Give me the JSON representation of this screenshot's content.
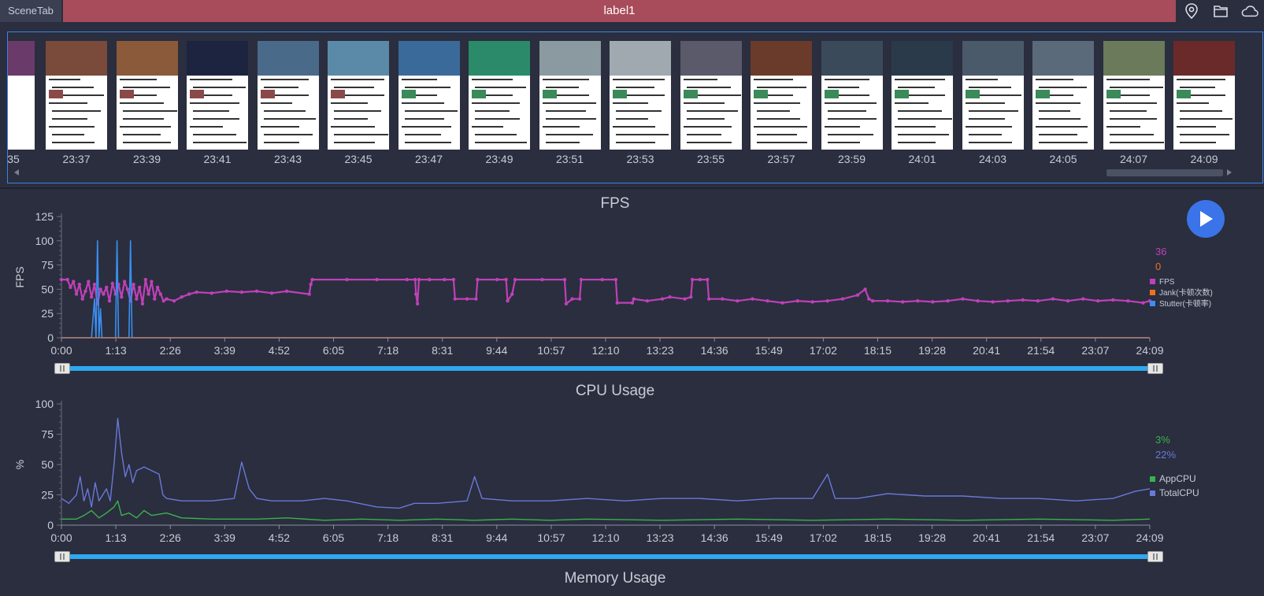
{
  "header": {
    "tab_label": "SceneTab",
    "title": "label1",
    "icons": [
      "location-icon",
      "folder-icon",
      "cloud-icon"
    ]
  },
  "filmstrip": {
    "partial_label": "35",
    "frames": [
      {
        "time": "23:37",
        "color": "#7a4a3a"
      },
      {
        "time": "23:39",
        "color": "#8a5a3a"
      },
      {
        "time": "23:41",
        "color": "#1c2440"
      },
      {
        "time": "23:43",
        "color": "#4a6a8a"
      },
      {
        "time": "23:45",
        "color": "#5a8aa8"
      },
      {
        "time": "23:47",
        "color": "#3a6a9a"
      },
      {
        "time": "23:49",
        "color": "#2a8a6a"
      },
      {
        "time": "23:51",
        "color": "#8a9aa0"
      },
      {
        "time": "23:53",
        "color": "#a0a8b0"
      },
      {
        "time": "23:55",
        "color": "#5a5a6a"
      },
      {
        "time": "23:57",
        "color": "#6a3a2a"
      },
      {
        "time": "23:59",
        "color": "#3a4a5a"
      },
      {
        "time": "24:01",
        "color": "#2a3a4a"
      },
      {
        "time": "24:03",
        "color": "#4a5a6a"
      },
      {
        "time": "24:05",
        "color": "#5a6a7a"
      },
      {
        "time": "24:07",
        "color": "#6a7a5a"
      },
      {
        "time": "24:09",
        "color": "#6a2a2a"
      }
    ]
  },
  "colors": {
    "fps": "#c040b8",
    "jank": "#f07020",
    "stutter": "#3b8ef0",
    "app_cpu": "#3cb050",
    "total_cpu": "#6a78d8"
  },
  "chart_data": [
    {
      "type": "line",
      "title": "FPS",
      "ylabel": "FPS",
      "xlabel": "",
      "ylim": [
        0,
        125
      ],
      "yticks": [
        "0",
        "25",
        "50",
        "75",
        "100",
        "125"
      ],
      "xticks": [
        "0:00",
        "1:13",
        "2:26",
        "3:39",
        "4:52",
        "6:05",
        "7:18",
        "8:31",
        "9:44",
        "10:57",
        "12:10",
        "13:23",
        "14:36",
        "15:49",
        "17:02",
        "18:15",
        "19:28",
        "20:41",
        "21:54",
        "23:07",
        "24:09"
      ],
      "xlim_seconds": [
        0,
        1449
      ],
      "current_values": {
        "fps": "36",
        "jank": "0"
      },
      "legend": [
        "FPS",
        "Jank(卡顿次数)",
        "Stutter(卡顿率)"
      ],
      "series": [
        {
          "name": "FPS",
          "points": [
            [
              0,
              60
            ],
            [
              8,
              60
            ],
            [
              12,
              52
            ],
            [
              16,
              58
            ],
            [
              20,
              45
            ],
            [
              24,
              55
            ],
            [
              28,
              40
            ],
            [
              32,
              48
            ],
            [
              36,
              58
            ],
            [
              40,
              42
            ],
            [
              44,
              55
            ],
            [
              48,
              35
            ],
            [
              52,
              50
            ],
            [
              56,
              45
            ],
            [
              60,
              52
            ],
            [
              64,
              38
            ],
            [
              68,
              56
            ],
            [
              72,
              45
            ],
            [
              76,
              55
            ],
            [
              80,
              42
            ],
            [
              84,
              58
            ],
            [
              88,
              50
            ],
            [
              92,
              38
            ],
            [
              96,
              55
            ],
            [
              100,
              40
            ],
            [
              104,
              52
            ],
            [
              108,
              35
            ],
            [
              112,
              60
            ],
            [
              116,
              45
            ],
            [
              120,
              58
            ],
            [
              124,
              40
            ],
            [
              128,
              52
            ],
            [
              132,
              45
            ],
            [
              136,
              38
            ],
            [
              140,
              40
            ],
            [
              150,
              38
            ],
            [
              160,
              42
            ],
            [
              170,
              45
            ],
            [
              180,
              47
            ],
            [
              200,
              46
            ],
            [
              220,
              48
            ],
            [
              240,
              47
            ],
            [
              260,
              48
            ],
            [
              280,
              46
            ],
            [
              300,
              48
            ],
            [
              330,
              45
            ],
            [
              332,
              55
            ],
            [
              334,
              60
            ],
            [
              380,
              60
            ],
            [
              420,
              60
            ],
            [
              460,
              60
            ],
            [
              471,
              60
            ],
            [
              472,
              45
            ],
            [
              474,
              35
            ],
            [
              476,
              60
            ],
            [
              490,
              60
            ],
            [
              510,
              60
            ],
            [
              522,
              60
            ],
            [
              524,
              40
            ],
            [
              540,
              40
            ],
            [
              552,
              40
            ],
            [
              554,
              60
            ],
            [
              580,
              60
            ],
            [
              592,
              60
            ],
            [
              594,
              38
            ],
            [
              600,
              45
            ],
            [
              604,
              60
            ],
            [
              640,
              60
            ],
            [
              670,
              60
            ],
            [
              672,
              35
            ],
            [
              680,
              40
            ],
            [
              690,
              40
            ],
            [
              692,
              60
            ],
            [
              720,
              60
            ],
            [
              738,
              60
            ],
            [
              740,
              36
            ],
            [
              760,
              36
            ],
            [
              762,
              40
            ],
            [
              780,
              38
            ],
            [
              800,
              40
            ],
            [
              810,
              42
            ],
            [
              830,
              40
            ],
            [
              838,
              42
            ],
            [
              840,
              60
            ],
            [
              850,
              60
            ],
            [
              860,
              60
            ],
            [
              862,
              40
            ],
            [
              880,
              40
            ],
            [
              900,
              38
            ],
            [
              920,
              40
            ],
            [
              940,
              38
            ],
            [
              960,
              36
            ],
            [
              980,
              38
            ],
            [
              1000,
              37
            ],
            [
              1020,
              38
            ],
            [
              1040,
              40
            ],
            [
              1060,
              44
            ],
            [
              1070,
              50
            ],
            [
              1075,
              40
            ],
            [
              1080,
              38
            ],
            [
              1100,
              38
            ],
            [
              1120,
              37
            ],
            [
              1140,
              38
            ],
            [
              1160,
              37
            ],
            [
              1180,
              38
            ],
            [
              1200,
              40
            ],
            [
              1220,
              38
            ],
            [
              1240,
              37
            ],
            [
              1260,
              38
            ],
            [
              1280,
              39
            ],
            [
              1300,
              38
            ],
            [
              1320,
              40
            ],
            [
              1340,
              38
            ],
            [
              1360,
              40
            ],
            [
              1380,
              38
            ],
            [
              1400,
              39
            ],
            [
              1420,
              38
            ],
            [
              1440,
              36
            ],
            [
              1449,
              38
            ]
          ]
        },
        {
          "name": "Stutter(卡顿率)",
          "points": [
            [
              0,
              0
            ],
            [
              40,
              0
            ],
            [
              44,
              40
            ],
            [
              46,
              0
            ],
            [
              48,
              100
            ],
            [
              50,
              0
            ],
            [
              52,
              30
            ],
            [
              54,
              0
            ],
            [
              72,
              0
            ],
            [
              74,
              100
            ],
            [
              76,
              0
            ],
            [
              90,
              0
            ],
            [
              92,
              100
            ],
            [
              94,
              0
            ],
            [
              1449,
              0
            ]
          ]
        },
        {
          "name": "Jank(卡顿次数)",
          "points": [
            [
              0,
              0
            ],
            [
              1449,
              0
            ]
          ]
        }
      ]
    },
    {
      "type": "line",
      "title": "CPU Usage",
      "ylabel": "%",
      "xlabel": "",
      "ylim": [
        0,
        100
      ],
      "yticks": [
        "0",
        "25",
        "50",
        "75",
        "100"
      ],
      "xticks": [
        "0:00",
        "1:13",
        "2:26",
        "3:39",
        "4:52",
        "6:05",
        "7:18",
        "8:31",
        "9:44",
        "10:57",
        "12:10",
        "13:23",
        "14:36",
        "15:49",
        "17:02",
        "18:15",
        "19:28",
        "20:41",
        "21:54",
        "23:07",
        "24:09"
      ],
      "xlim_seconds": [
        0,
        1449
      ],
      "current_values": {
        "app_cpu": "3%",
        "total_cpu": "22%"
      },
      "legend": [
        "AppCPU",
        "TotalCPU"
      ],
      "series": [
        {
          "name": "AppCPU",
          "points": [
            [
              0,
              5
            ],
            [
              20,
              5
            ],
            [
              30,
              8
            ],
            [
              40,
              12
            ],
            [
              50,
              6
            ],
            [
              60,
              10
            ],
            [
              70,
              15
            ],
            [
              75,
              20
            ],
            [
              80,
              8
            ],
            [
              90,
              10
            ],
            [
              100,
              6
            ],
            [
              110,
              12
            ],
            [
              120,
              8
            ],
            [
              140,
              10
            ],
            [
              160,
              6
            ],
            [
              200,
              5
            ],
            [
              260,
              5
            ],
            [
              300,
              6
            ],
            [
              350,
              4
            ],
            [
              400,
              5
            ],
            [
              450,
              4
            ],
            [
              500,
              5
            ],
            [
              550,
              4
            ],
            [
              600,
              5
            ],
            [
              650,
              4
            ],
            [
              700,
              5
            ],
            [
              800,
              4
            ],
            [
              900,
              5
            ],
            [
              1000,
              4
            ],
            [
              1100,
              5
            ],
            [
              1200,
              4
            ],
            [
              1300,
              5
            ],
            [
              1400,
              4
            ],
            [
              1449,
              5
            ]
          ]
        },
        {
          "name": "TotalCPU",
          "points": [
            [
              0,
              22
            ],
            [
              10,
              18
            ],
            [
              20,
              25
            ],
            [
              25,
              40
            ],
            [
              30,
              20
            ],
            [
              35,
              30
            ],
            [
              40,
              15
            ],
            [
              45,
              35
            ],
            [
              50,
              20
            ],
            [
              55,
              25
            ],
            [
              60,
              30
            ],
            [
              65,
              20
            ],
            [
              70,
              50
            ],
            [
              75,
              88
            ],
            [
              80,
              60
            ],
            [
              85,
              40
            ],
            [
              90,
              50
            ],
            [
              95,
              35
            ],
            [
              100,
              45
            ],
            [
              110,
              48
            ],
            [
              120,
              45
            ],
            [
              130,
              42
            ],
            [
              135,
              25
            ],
            [
              140,
              22
            ],
            [
              160,
              20
            ],
            [
              200,
              20
            ],
            [
              230,
              22
            ],
            [
              240,
              52
            ],
            [
              250,
              30
            ],
            [
              260,
              22
            ],
            [
              280,
              20
            ],
            [
              320,
              20
            ],
            [
              350,
              22
            ],
            [
              380,
              20
            ],
            [
              420,
              15
            ],
            [
              450,
              14
            ],
            [
              470,
              18
            ],
            [
              500,
              18
            ],
            [
              540,
              20
            ],
            [
              550,
              40
            ],
            [
              560,
              22
            ],
            [
              600,
              20
            ],
            [
              650,
              20
            ],
            [
              700,
              22
            ],
            [
              750,
              20
            ],
            [
              800,
              22
            ],
            [
              850,
              22
            ],
            [
              900,
              20
            ],
            [
              950,
              22
            ],
            [
              1000,
              22
            ],
            [
              1020,
              42
            ],
            [
              1030,
              22
            ],
            [
              1060,
              22
            ],
            [
              1100,
              26
            ],
            [
              1150,
              24
            ],
            [
              1200,
              24
            ],
            [
              1250,
              22
            ],
            [
              1300,
              22
            ],
            [
              1350,
              20
            ],
            [
              1400,
              22
            ],
            [
              1430,
              28
            ],
            [
              1449,
              30
            ]
          ]
        }
      ]
    }
  ],
  "memory_chart": {
    "title": "Memory Usage"
  }
}
